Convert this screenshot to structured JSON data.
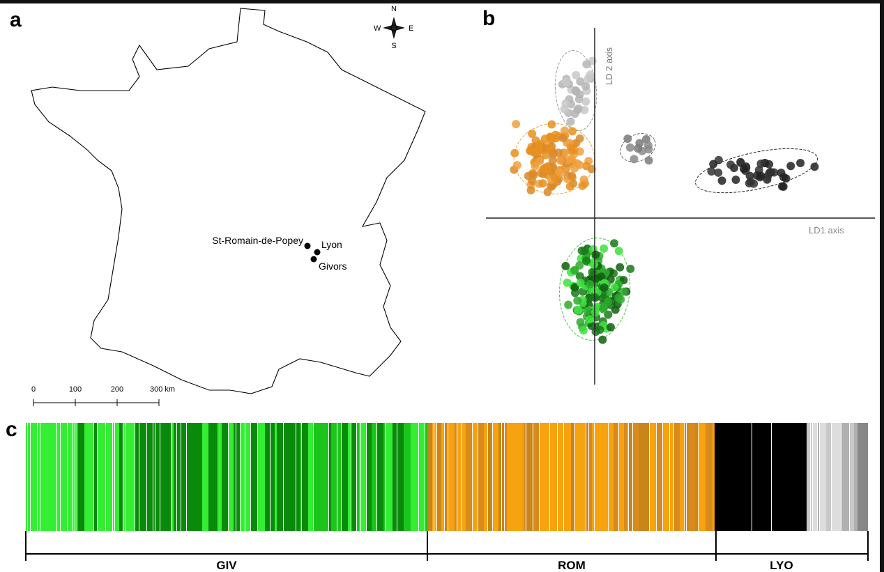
{
  "panel_a": {
    "label": "a",
    "compass": {
      "n": "N",
      "e": "E",
      "s": "S",
      "w": "W"
    },
    "cities": [
      "St-Romain-de-Popey",
      "Lyon",
      "Givors"
    ],
    "scale": [
      "0",
      "100",
      "200",
      "300 km"
    ]
  },
  "panel_b": {
    "label": "b",
    "y_axis": "LD 2 axis",
    "x_axis": "LD1 axis"
  },
  "panel_c": {
    "label": "c",
    "groups": [
      "GIV",
      "ROM",
      "LYO"
    ]
  }
}
